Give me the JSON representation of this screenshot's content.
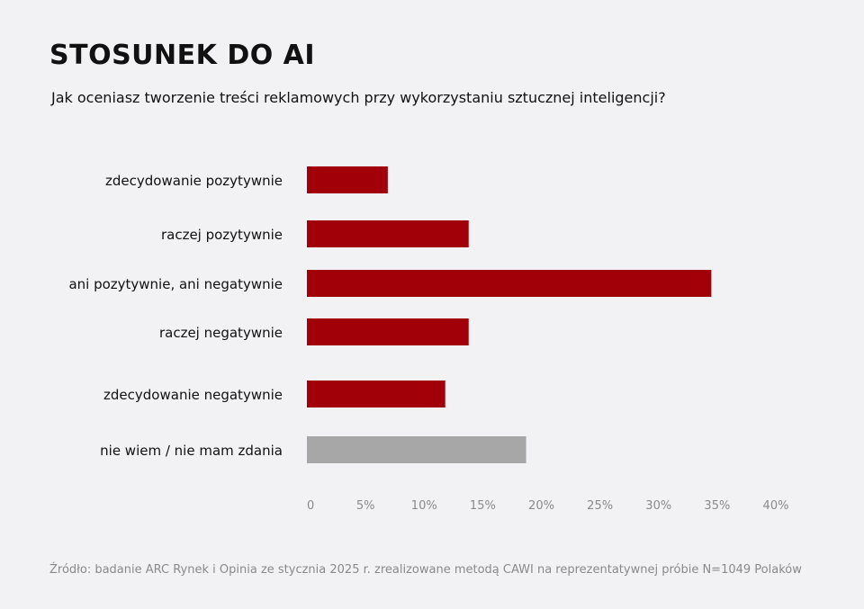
{
  "title": "STOSUNEK DO AI",
  "subtitle": "Jak oceniasz tworzenie treści reklamowych przy wykorzystaniu sztucznej inteligencji?",
  "source": "Źródło: badanie ARC Rynek i Opinia ze stycznia 2025 r. zrealizowane metodą CAWI na reprezentatywnej próbie N=1049 Polaków",
  "colors": {
    "primary": "#a10008",
    "neutral": "#a7a7a7",
    "tick": "#8a8a8a"
  },
  "chart_data": {
    "type": "bar",
    "orientation": "horizontal",
    "title": "STOSUNEK DO AI",
    "subtitle": "Jak oceniasz tworzenie treści reklamowych przy wykorzystaniu sztucznej inteligencji?",
    "xlabel": "",
    "ylabel": "",
    "xlim": [
      0,
      40
    ],
    "xticks": [
      "0",
      "5%",
      "10%",
      "15%",
      "20%",
      "25%",
      "30%",
      "35%",
      "40%"
    ],
    "grid": false,
    "categories": [
      "zdecydowanie pozytywnie",
      "raczej pozytywnie",
      "ani pozytywnie, ani negatywnie",
      "raczej negatywnie",
      "zdecydowanie negatywnie",
      "nie wiem / nie mam zdania"
    ],
    "values": [
      6.9,
      13.8,
      34.5,
      13.8,
      11.8,
      18.7
    ],
    "bar_colors": [
      "#a10008",
      "#a10008",
      "#a10008",
      "#a10008",
      "#a10008",
      "#a7a7a7"
    ]
  }
}
